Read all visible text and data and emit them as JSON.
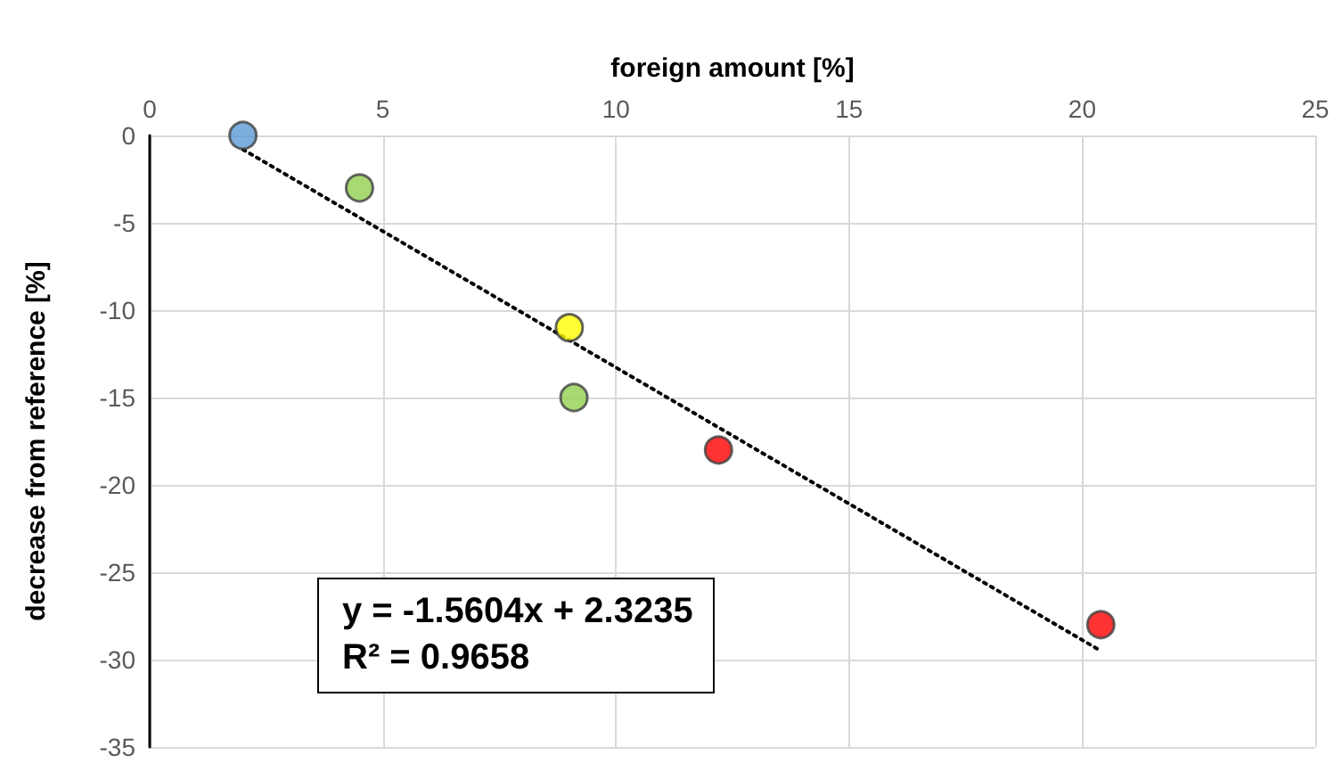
{
  "chart_data": {
    "type": "scatter",
    "xlabel": "foreign amount [%]",
    "ylabel": "decrease from reference [%]",
    "series": [
      {
        "x": [
          2,
          4.5,
          9,
          9.1,
          12.2,
          20.4
        ],
        "values": [
          0,
          -3,
          -11,
          -15,
          -18,
          -28
        ],
        "colors": [
          "#5b9bd5",
          "#92d050",
          "#ffff00",
          "#92d050",
          "#ff0000",
          "#ff0000"
        ],
        "marker": "circle"
      },
      {
        "type": "line",
        "x": [
          2,
          20.4
        ],
        "values": [
          -0.8,
          -29.5
        ],
        "color": "#000000",
        "line_style": "dotted",
        "marker": "none"
      }
    ],
    "xlim": [
      0,
      25
    ],
    "xticks": [
      0,
      5,
      10,
      15,
      20,
      25
    ],
    "ylim": [
      -35,
      0
    ],
    "yticks": [
      -35,
      -30,
      -25,
      -20,
      -15,
      -10,
      -5,
      0
    ],
    "grid": true,
    "annotations": [
      "y = -1.5604x + 2.3235",
      "R² = 0.9658"
    ]
  }
}
